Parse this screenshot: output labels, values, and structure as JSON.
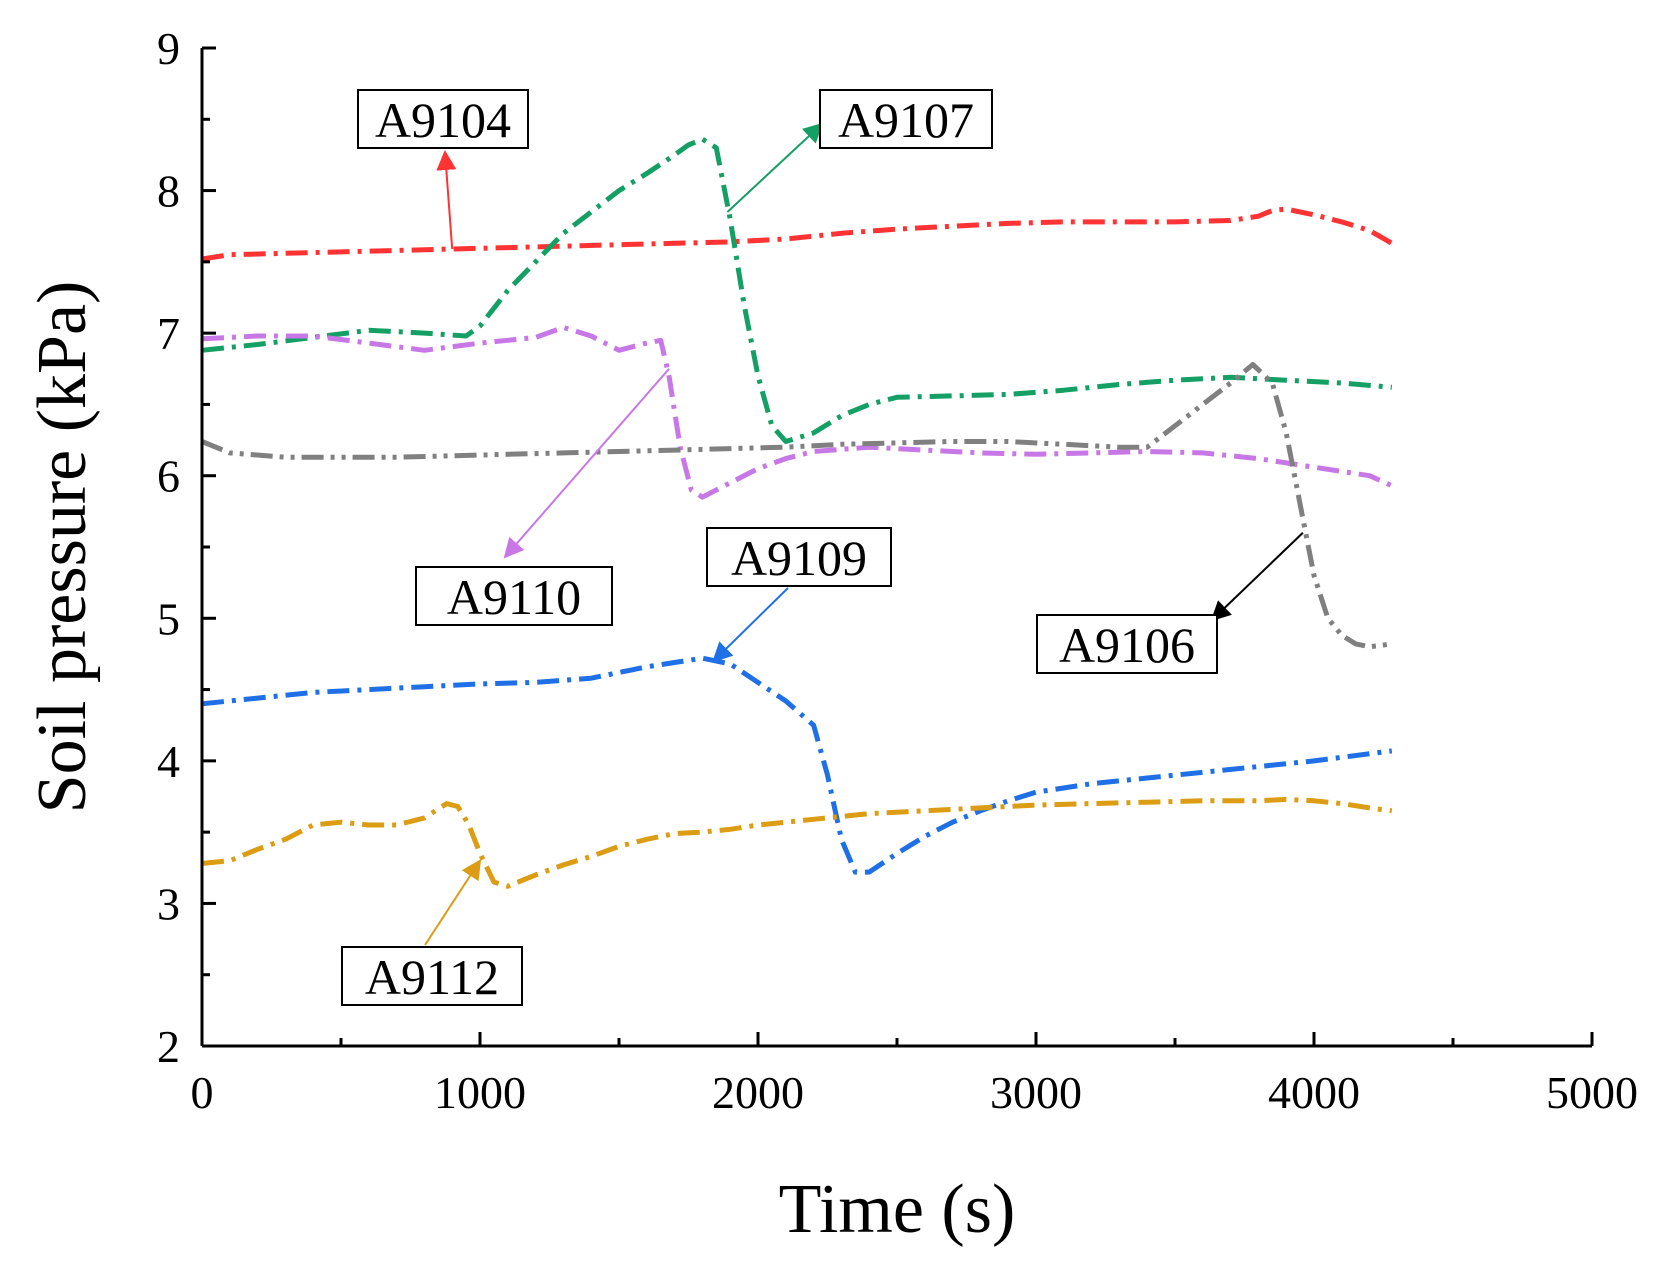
{
  "chart_data": {
    "type": "line",
    "title": "",
    "xlabel": "Time (s)",
    "ylabel": "Soil pressure (kPa)",
    "xlim": [
      0,
      5000
    ],
    "ylim": [
      2,
      9
    ],
    "xticks": [
      0,
      1000,
      2000,
      3000,
      4000,
      5000
    ],
    "yticks": [
      2,
      3,
      4,
      5,
      6,
      7,
      8,
      9
    ],
    "grid": false,
    "series": [
      {
        "name": "A9104",
        "color": "#ff3333",
        "dash": "dash-dot",
        "x": [
          0,
          100,
          300,
          500,
          700,
          900,
          1100,
          1300,
          1500,
          1700,
          1900,
          2100,
          2300,
          2500,
          2700,
          2900,
          3100,
          3300,
          3500,
          3700,
          3800,
          3850,
          3900,
          4000,
          4100,
          4200,
          4280
        ],
        "y": [
          7.52,
          7.55,
          7.56,
          7.57,
          7.58,
          7.59,
          7.6,
          7.61,
          7.62,
          7.63,
          7.64,
          7.66,
          7.7,
          7.73,
          7.75,
          7.77,
          7.78,
          7.78,
          7.78,
          7.79,
          7.82,
          7.86,
          7.87,
          7.83,
          7.78,
          7.72,
          7.63
        ]
      },
      {
        "name": "A9107",
        "color": "#14a064",
        "dash": "dash-dot",
        "x": [
          0,
          200,
          400,
          600,
          800,
          950,
          1000,
          1100,
          1200,
          1300,
          1400,
          1500,
          1600,
          1700,
          1750,
          1800,
          1850,
          1900,
          1950,
          2000,
          2050,
          2100,
          2200,
          2300,
          2400,
          2500,
          2700,
          2900,
          3100,
          3300,
          3500,
          3700,
          3900,
          4100,
          4280
        ],
        "y": [
          6.88,
          6.92,
          6.97,
          7.02,
          7.0,
          6.98,
          7.05,
          7.3,
          7.5,
          7.7,
          7.85,
          8.0,
          8.12,
          8.25,
          8.32,
          8.36,
          8.3,
          7.8,
          7.2,
          6.7,
          6.35,
          6.24,
          6.3,
          6.42,
          6.5,
          6.55,
          6.56,
          6.57,
          6.6,
          6.64,
          6.67,
          6.69,
          6.67,
          6.65,
          6.62
        ]
      },
      {
        "name": "A9110",
        "color": "#c878e6",
        "dash": "dash-dot",
        "x": [
          0,
          200,
          400,
          600,
          800,
          1000,
          1100,
          1200,
          1300,
          1400,
          1500,
          1600,
          1650,
          1680,
          1720,
          1760,
          1800,
          1900,
          2000,
          2100,
          2200,
          2400,
          2600,
          2800,
          3000,
          3200,
          3400,
          3600,
          3800,
          4000,
          4200,
          4280
        ],
        "y": [
          6.96,
          6.98,
          6.98,
          6.93,
          6.88,
          6.93,
          6.95,
          6.97,
          7.04,
          6.98,
          6.88,
          6.93,
          6.95,
          6.7,
          6.2,
          5.9,
          5.85,
          5.95,
          6.05,
          6.12,
          6.17,
          6.2,
          6.18,
          6.16,
          6.15,
          6.16,
          6.17,
          6.16,
          6.12,
          6.06,
          6.0,
          5.93
        ]
      },
      {
        "name": "A9106",
        "color": "#808080",
        "dash": "dash-dot-dot",
        "x": [
          0,
          100,
          300,
          500,
          700,
          900,
          1100,
          1300,
          1500,
          1700,
          1900,
          2100,
          2300,
          2500,
          2700,
          2900,
          3100,
          3300,
          3400,
          3500,
          3600,
          3700,
          3780,
          3850,
          3900,
          3950,
          4000,
          4050,
          4100,
          4150,
          4200,
          4280
        ],
        "y": [
          6.24,
          6.16,
          6.13,
          6.13,
          6.13,
          6.14,
          6.15,
          6.16,
          6.17,
          6.18,
          6.19,
          6.2,
          6.22,
          6.23,
          6.24,
          6.24,
          6.22,
          6.2,
          6.2,
          6.35,
          6.5,
          6.65,
          6.78,
          6.65,
          6.3,
          5.8,
          5.3,
          5.0,
          4.88,
          4.82,
          4.8,
          4.82
        ]
      },
      {
        "name": "A9109",
        "color": "#1f6fe6",
        "dash": "dash-dot",
        "x": [
          0,
          200,
          400,
          600,
          800,
          1000,
          1200,
          1400,
          1600,
          1800,
          1900,
          2000,
          2100,
          2200,
          2250,
          2300,
          2350,
          2400,
          2500,
          2600,
          2700,
          2800,
          2900,
          3000,
          3200,
          3400,
          3600,
          3800,
          4000,
          4200,
          4280
        ],
        "y": [
          4.4,
          4.44,
          4.48,
          4.5,
          4.52,
          4.54,
          4.55,
          4.58,
          4.66,
          4.72,
          4.68,
          4.55,
          4.42,
          4.25,
          3.9,
          3.45,
          3.22,
          3.22,
          3.35,
          3.47,
          3.57,
          3.65,
          3.72,
          3.78,
          3.84,
          3.88,
          3.92,
          3.96,
          4.0,
          4.05,
          4.07
        ]
      },
      {
        "name": "A9112",
        "color": "#dc9c14",
        "dash": "dash-dot",
        "x": [
          0,
          100,
          200,
          300,
          400,
          500,
          600,
          700,
          800,
          880,
          920,
          960,
          1000,
          1050,
          1100,
          1200,
          1300,
          1400,
          1500,
          1600,
          1700,
          1800,
          1900,
          2000,
          2100,
          2200,
          2400,
          2600,
          2800,
          3000,
          3200,
          3400,
          3600,
          3800,
          3900,
          4000,
          4100,
          4200,
          4280
        ],
        "y": [
          3.28,
          3.3,
          3.38,
          3.45,
          3.55,
          3.57,
          3.55,
          3.55,
          3.6,
          3.7,
          3.68,
          3.55,
          3.35,
          3.15,
          3.12,
          3.2,
          3.27,
          3.33,
          3.4,
          3.45,
          3.49,
          3.5,
          3.52,
          3.55,
          3.57,
          3.59,
          3.63,
          3.65,
          3.67,
          3.69,
          3.7,
          3.71,
          3.72,
          3.72,
          3.73,
          3.72,
          3.7,
          3.67,
          3.65
        ]
      }
    ],
    "annotations": [
      {
        "series": "A9104",
        "text": "A9104",
        "point_x": 900,
        "point_y": 7.59
      },
      {
        "series": "A9107",
        "text": "A9107",
        "point_x": 1890,
        "point_y": 7.85
      },
      {
        "series": "A9110",
        "text": "A9110",
        "point_x": 1680,
        "point_y": 6.75
      },
      {
        "series": "A9109",
        "text": "A9109",
        "point_x": 1840,
        "point_y": 4.7
      },
      {
        "series": "A9106",
        "text": "A9106",
        "point_x": 3960,
        "point_y": 5.6
      },
      {
        "series": "A9112",
        "text": "A9112",
        "point_x": 1000,
        "point_y": 3.3
      }
    ]
  }
}
